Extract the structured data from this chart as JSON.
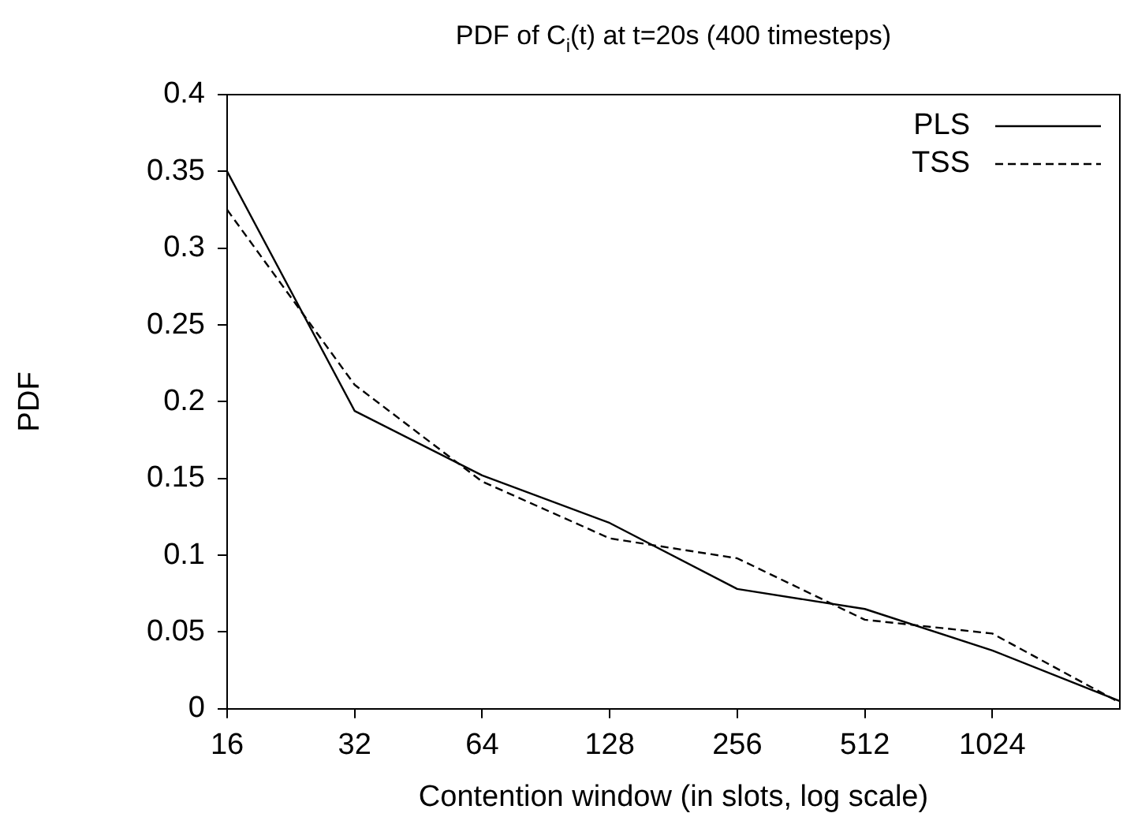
{
  "chart_data": {
    "type": "line",
    "title": "PDF of C$_{i}$(t) at t=20s (400 timesteps)",
    "xlabel": "Contention window (in slots, log scale)",
    "ylabel": "PDF",
    "x": [
      16,
      32,
      64,
      128,
      256,
      512,
      1024,
      2048
    ],
    "series": [
      {
        "name": "PLS",
        "color": "#000000",
        "line_style": "solid",
        "values": [
          0.35,
          0.194,
          0.152,
          0.121,
          0.078,
          0.065,
          0.038,
          0.005
        ]
      },
      {
        "name": "TSS",
        "color": "#000000",
        "line_style": "dashed",
        "values": [
          0.325,
          0.211,
          0.148,
          0.111,
          0.098,
          0.058,
          0.049,
          0.004
        ]
      }
    ],
    "log": "x",
    "xlim": [
      16,
      2048
    ],
    "xticks": [
      16,
      32,
      64,
      128,
      256,
      512,
      1024
    ],
    "ylim": [
      0,
      0.4
    ],
    "yticks": [
      0,
      0.05,
      0.1,
      0.15,
      0.2,
      0.25,
      0.3,
      0.35,
      0.4
    ],
    "grid": false,
    "legend": "top right",
    "marker": "none"
  }
}
